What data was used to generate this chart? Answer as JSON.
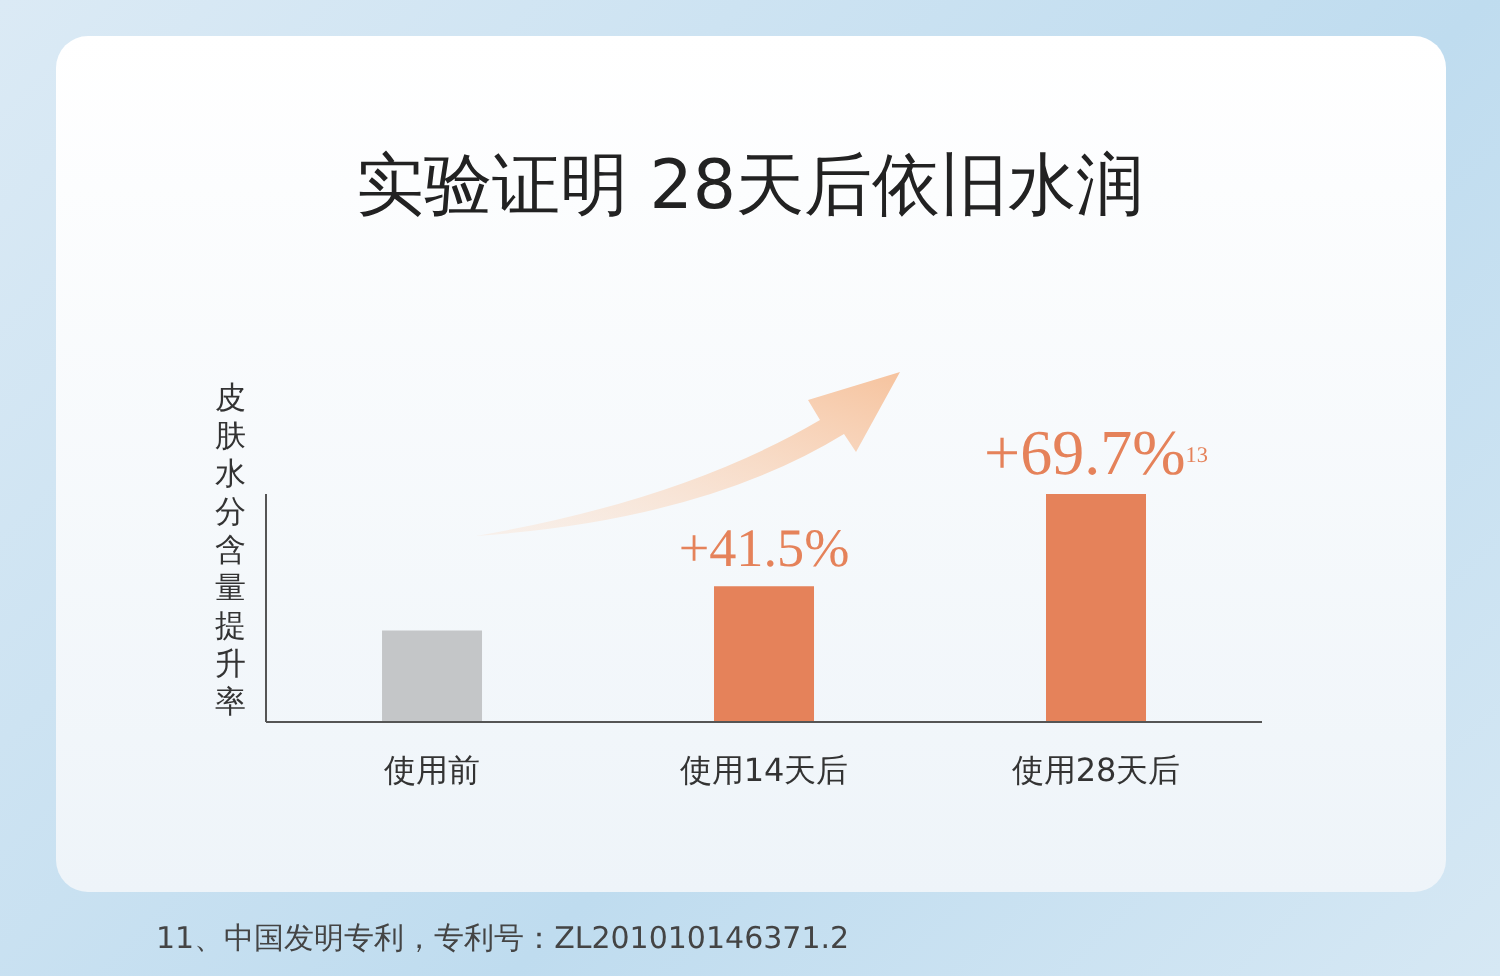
{
  "chart_data": {
    "type": "bar",
    "title": "实验证明 28天后依旧水润",
    "ylabel": "皮肤水分含量提升率",
    "categories": [
      "使用前",
      "使用14天后",
      "使用28天后"
    ],
    "values": [
      28,
      41.5,
      69.7
    ],
    "ylim": [
      0,
      69.7
    ],
    "colors": [
      "#c4c6c8",
      "#e5825a",
      "#e5825a"
    ],
    "value_labels": [
      null,
      "+41.5%",
      "+69.7%$^{13}$"
    ],
    "annotations": [
      "11、中国发明专利，专利号：ZL201010146371.2"
    ]
  }
}
